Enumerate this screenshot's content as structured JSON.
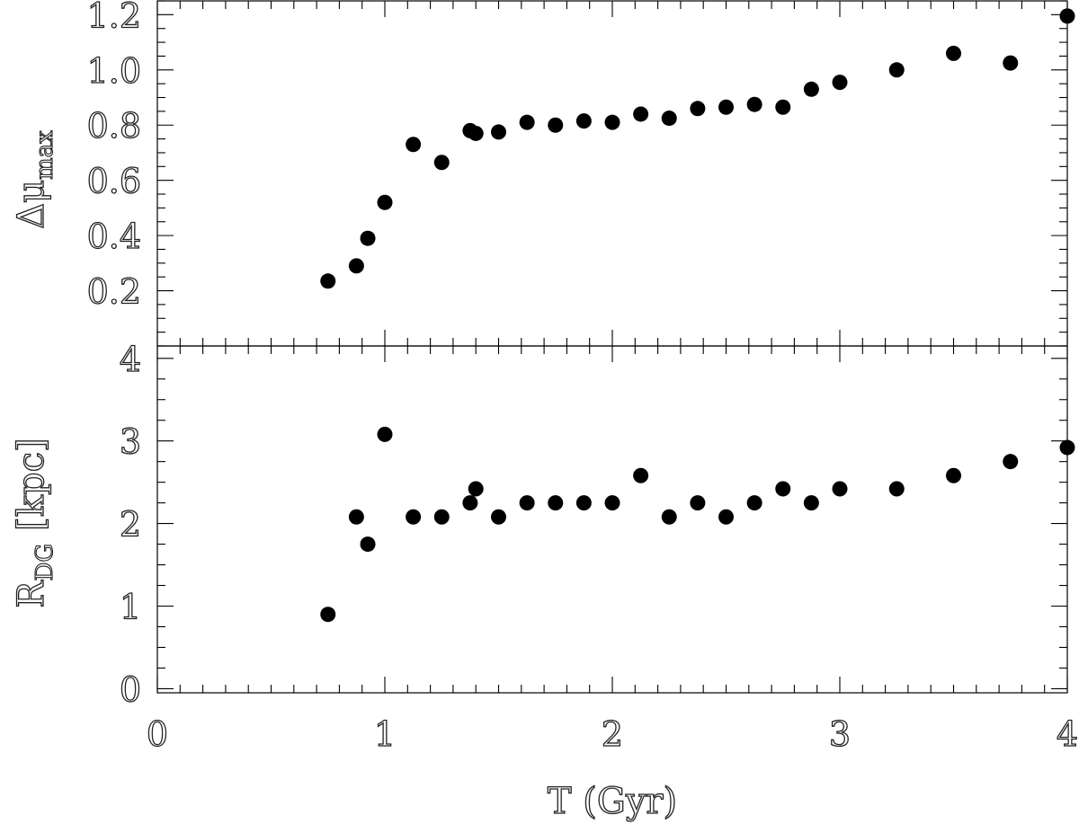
{
  "chart_data": [
    {
      "type": "scatter",
      "panel": "top",
      "ylabel": "Δμ",
      "ylabel_subscript": "max",
      "xlim": [
        0,
        4
      ],
      "ylim": [
        0.0,
        1.25
      ],
      "yticks": [
        "0.2",
        "0.4",
        "0.6",
        "0.8",
        "1.0",
        "1.2"
      ],
      "series": [
        {
          "x": [
            0.75,
            0.875,
            0.925,
            1.0,
            1.125,
            1.25,
            1.375,
            1.4,
            1.5,
            1.625,
            1.75,
            1.875,
            2.0,
            2.125,
            2.25,
            2.375,
            2.5,
            2.625,
            2.75,
            2.875,
            3.0,
            3.25,
            3.5,
            3.75,
            4.0
          ],
          "y": [
            0.235,
            0.29,
            0.39,
            0.52,
            0.73,
            0.665,
            0.78,
            0.77,
            0.775,
            0.81,
            0.8,
            0.815,
            0.81,
            0.84,
            0.825,
            0.86,
            0.865,
            0.875,
            0.865,
            0.93,
            0.955,
            1.0,
            1.06,
            1.025,
            1.195
          ]
        }
      ]
    },
    {
      "type": "scatter",
      "panel": "bottom",
      "ylabel": "R",
      "ylabel_subscript": "DG",
      "ylabel_suffix": "[kpc]",
      "xlabel": "T (Gyr)",
      "xlim": [
        0,
        4
      ],
      "ylim": [
        -0.05,
        4.15
      ],
      "xticks": [
        "0",
        "1",
        "2",
        "3",
        "4"
      ],
      "yticks": [
        "0",
        "1",
        "2",
        "3",
        "4"
      ],
      "series": [
        {
          "x": [
            0.75,
            0.875,
            0.925,
            1.0,
            1.125,
            1.25,
            1.375,
            1.4,
            1.5,
            1.625,
            1.75,
            1.875,
            2.0,
            2.125,
            2.25,
            2.375,
            2.5,
            2.625,
            2.75,
            2.875,
            3.0,
            3.25,
            3.5,
            3.75,
            4.0
          ],
          "y": [
            0.9,
            2.08,
            1.75,
            3.08,
            2.08,
            2.08,
            2.25,
            2.42,
            2.08,
            2.25,
            2.25,
            2.25,
            2.25,
            2.58,
            2.08,
            2.25,
            2.08,
            2.25,
            2.42,
            2.25,
            2.42,
            2.42,
            2.58,
            2.75,
            2.92
          ]
        }
      ]
    }
  ]
}
